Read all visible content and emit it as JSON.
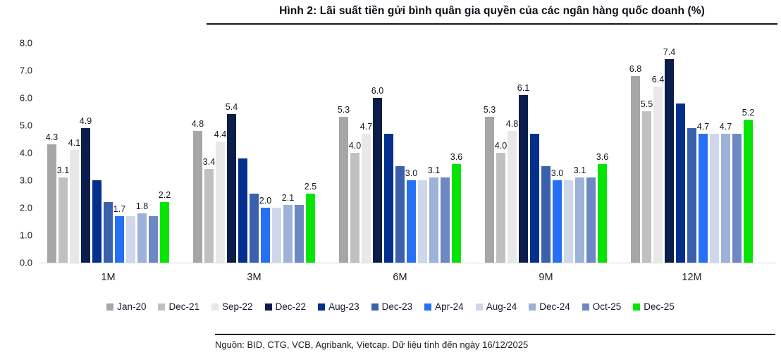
{
  "chart_data": {
    "type": "bar",
    "title": "Hình 2: Lãi suất tiền gửi bình quân gia quyền của các ngân hàng quốc doanh (%)",
    "source": "Nguồn: BID, CTG, VCB, Agribank, Vietcap. Dữ liệu tính đến ngày 16/12/2025",
    "categories": [
      "1M",
      "3M",
      "6M",
      "9M",
      "12M"
    ],
    "ylim": [
      0,
      8
    ],
    "ytick_labels": [
      "0.0",
      "1.0",
      "2.0",
      "3.0",
      "4.0",
      "5.0",
      "6.0",
      "7.0",
      "8.0"
    ],
    "grid": false,
    "legend_position": "bottom",
    "series": [
      {
        "name": "Jan-20",
        "color": "#a6a6a6",
        "show_labels": true,
        "values": [
          4.3,
          4.8,
          5.3,
          5.3,
          6.8
        ]
      },
      {
        "name": "Dec-21",
        "color": "#c0c0c0",
        "show_labels": true,
        "values": [
          3.1,
          3.4,
          4.0,
          4.0,
          5.5
        ]
      },
      {
        "name": "Sep-22",
        "color": "#e8e8e8",
        "show_labels": true,
        "values": [
          4.1,
          4.4,
          4.7,
          4.8,
          6.4
        ]
      },
      {
        "name": "Dec-22",
        "color": "#0b1e4a",
        "show_labels": true,
        "values": [
          4.9,
          5.4,
          6.0,
          6.1,
          7.4
        ]
      },
      {
        "name": "Aug-23",
        "color": "#03308c",
        "show_labels": false,
        "values": [
          3.0,
          3.8,
          4.7,
          4.7,
          5.8
        ]
      },
      {
        "name": "Dec-23",
        "color": "#3a60ae",
        "show_labels": false,
        "values": [
          2.2,
          2.5,
          3.5,
          3.5,
          4.9
        ]
      },
      {
        "name": "Apr-24",
        "color": "#2570f5",
        "show_labels": true,
        "values": [
          1.7,
          2.0,
          3.0,
          3.0,
          4.7
        ]
      },
      {
        "name": "Aug-24",
        "color": "#ced8ea",
        "show_labels": false,
        "values": [
          1.7,
          2.0,
          3.0,
          3.0,
          4.7
        ]
      },
      {
        "name": "Dec-24",
        "color": "#9db2d9",
        "show_labels": true,
        "values": [
          1.8,
          2.1,
          3.1,
          3.1,
          4.7
        ]
      },
      {
        "name": "Oct-25",
        "color": "#6d88c3",
        "show_labels": false,
        "values": [
          1.7,
          2.1,
          3.1,
          3.1,
          4.7
        ]
      },
      {
        "name": "Dec-25",
        "color": "#06e406",
        "show_labels": true,
        "values": [
          2.2,
          2.5,
          3.6,
          3.6,
          5.2
        ]
      }
    ]
  }
}
